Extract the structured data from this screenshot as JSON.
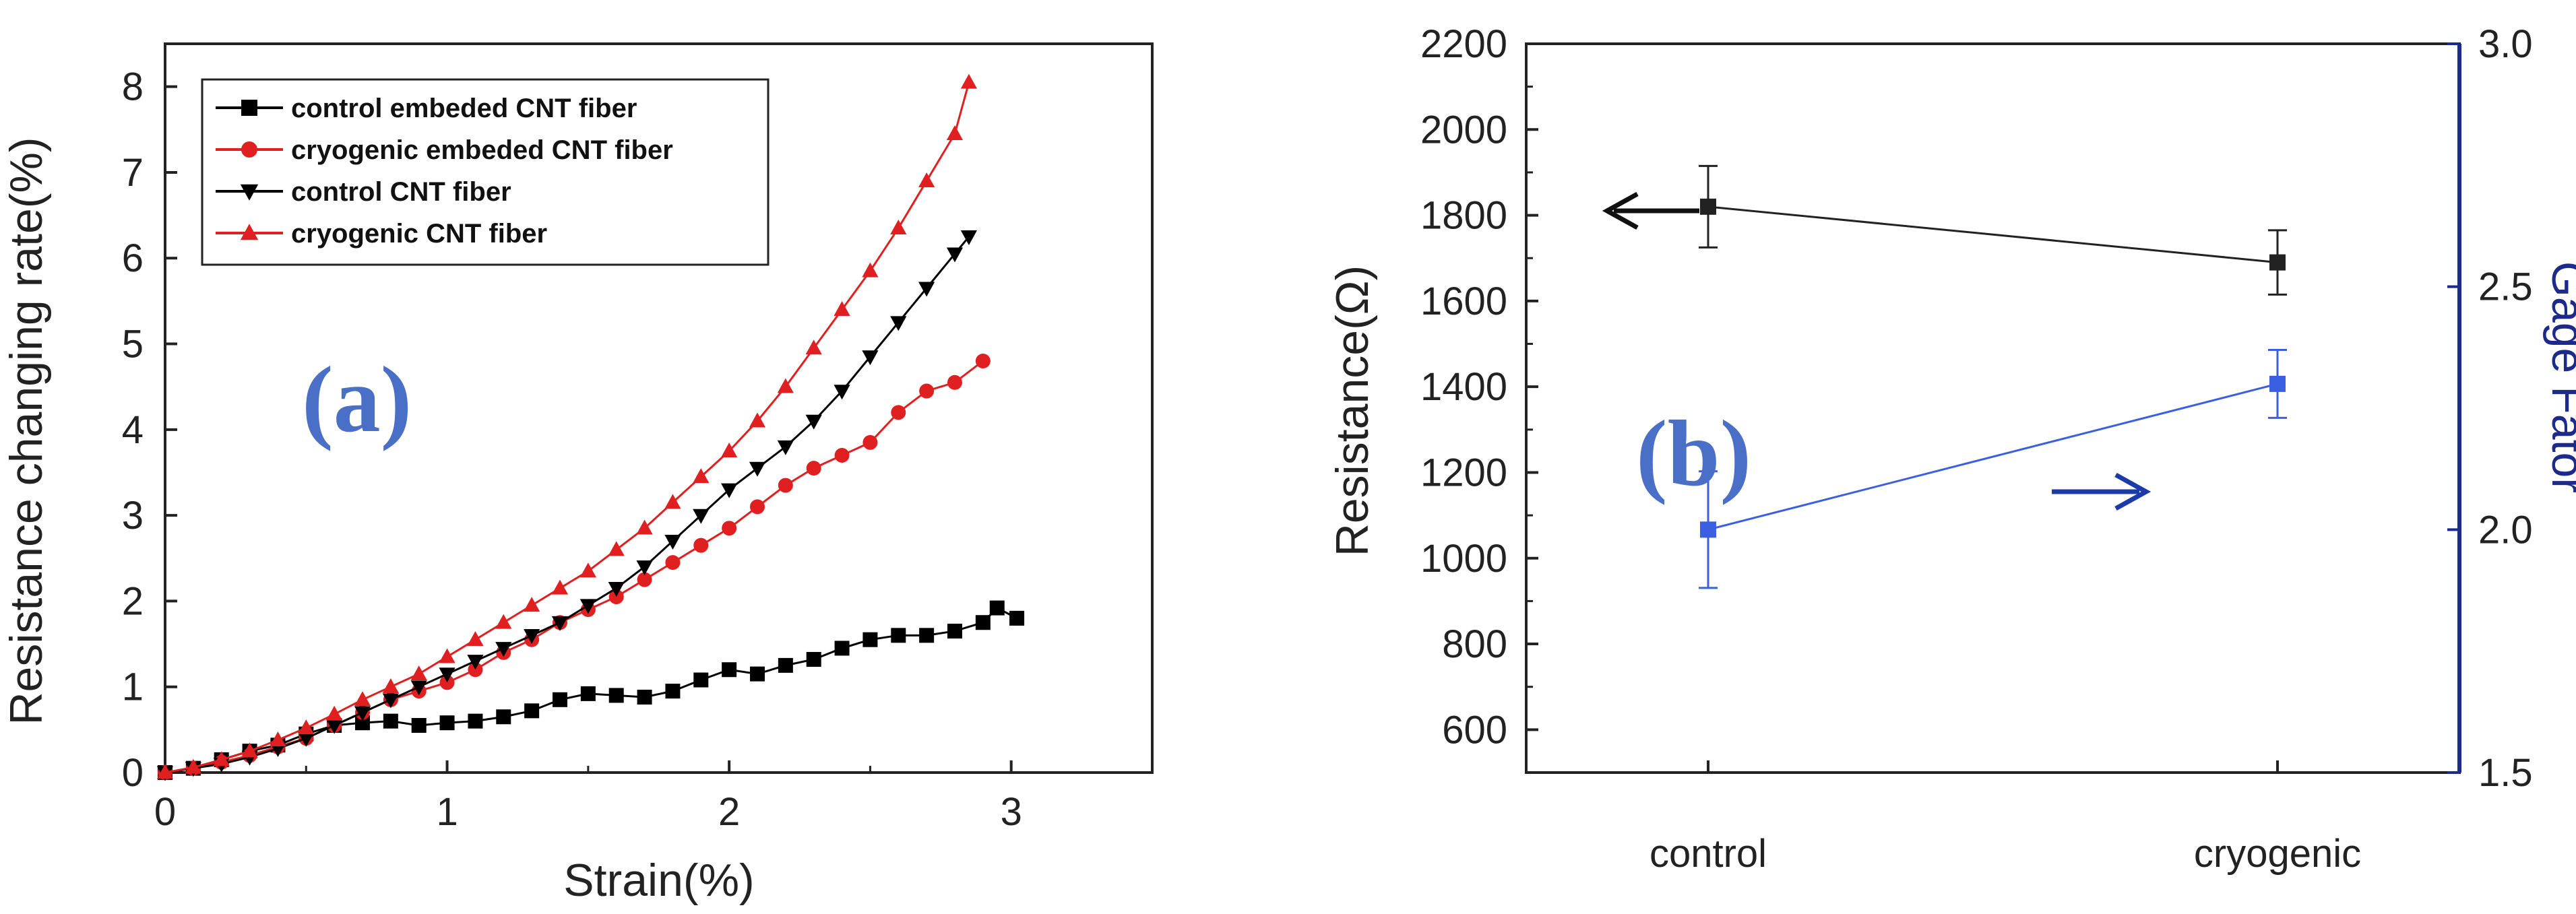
{
  "chart_data": [
    {
      "type": "line",
      "panel_label": "(a)",
      "title": "",
      "xlabel": "Strain(%)",
      "ylabel": "Resistance changing rate(%)",
      "xlim": [
        0,
        3.5
      ],
      "ylim": [
        0,
        8.5
      ],
      "xticks": [
        0,
        1,
        2,
        3
      ],
      "yticks": [
        0,
        1,
        2,
        3,
        4,
        5,
        6,
        7,
        8
      ],
      "legend_position": "top-left",
      "series": [
        {
          "name": "control embeded CNT fiber",
          "marker": "square",
          "color": "#000000",
          "x": [
            0.0,
            0.1,
            0.2,
            0.3,
            0.4,
            0.5,
            0.6,
            0.7,
            0.8,
            0.9,
            1.0,
            1.1,
            1.2,
            1.3,
            1.4,
            1.5,
            1.6,
            1.7,
            1.8,
            1.9,
            2.0,
            2.1,
            2.2,
            2.3,
            2.4,
            2.5,
            2.6,
            2.7,
            2.8,
            2.9,
            2.95,
            3.02
          ],
          "y": [
            0.0,
            0.05,
            0.15,
            0.25,
            0.32,
            0.45,
            0.55,
            0.58,
            0.6,
            0.55,
            0.58,
            0.6,
            0.65,
            0.72,
            0.85,
            0.92,
            0.9,
            0.88,
            0.95,
            1.08,
            1.2,
            1.15,
            1.25,
            1.32,
            1.45,
            1.55,
            1.6,
            1.6,
            1.65,
            1.75,
            1.92,
            1.8
          ]
        },
        {
          "name": "cryogenic embeded CNT fiber",
          "marker": "circle",
          "color": "#e02020",
          "x": [
            0.0,
            0.1,
            0.2,
            0.3,
            0.4,
            0.5,
            0.6,
            0.7,
            0.8,
            0.9,
            1.0,
            1.1,
            1.2,
            1.3,
            1.4,
            1.5,
            1.6,
            1.7,
            1.8,
            1.9,
            2.0,
            2.1,
            2.2,
            2.3,
            2.4,
            2.5,
            2.6,
            2.7,
            2.8,
            2.9
          ],
          "y": [
            0.0,
            0.05,
            0.12,
            0.2,
            0.3,
            0.4,
            0.55,
            0.7,
            0.85,
            0.95,
            1.05,
            1.2,
            1.4,
            1.55,
            1.75,
            1.9,
            2.05,
            2.25,
            2.45,
            2.65,
            2.85,
            3.1,
            3.35,
            3.55,
            3.7,
            3.85,
            4.2,
            4.45,
            4.55,
            4.8
          ]
        },
        {
          "name": "control CNT fiber",
          "marker": "triangle-down",
          "color": "#000000",
          "x": [
            0.0,
            0.1,
            0.2,
            0.3,
            0.4,
            0.5,
            0.6,
            0.7,
            0.8,
            0.9,
            1.0,
            1.1,
            1.2,
            1.3,
            1.4,
            1.5,
            1.6,
            1.7,
            1.8,
            1.9,
            2.0,
            2.1,
            2.2,
            2.3,
            2.4,
            2.5,
            2.6,
            2.7,
            2.8,
            2.85
          ],
          "y": [
            0.0,
            0.05,
            0.1,
            0.18,
            0.28,
            0.4,
            0.55,
            0.7,
            0.85,
            1.0,
            1.15,
            1.3,
            1.45,
            1.6,
            1.75,
            1.95,
            2.15,
            2.4,
            2.7,
            3.0,
            3.3,
            3.55,
            3.8,
            4.1,
            4.45,
            4.85,
            5.25,
            5.65,
            6.05,
            6.25
          ]
        },
        {
          "name": "cryogenic CNT fiber",
          "marker": "triangle-up",
          "color": "#e02020",
          "x": [
            0.0,
            0.1,
            0.2,
            0.3,
            0.4,
            0.5,
            0.6,
            0.7,
            0.8,
            0.9,
            1.0,
            1.1,
            1.2,
            1.3,
            1.4,
            1.5,
            1.6,
            1.7,
            1.8,
            1.9,
            2.0,
            2.1,
            2.2,
            2.3,
            2.4,
            2.5,
            2.6,
            2.7,
            2.8,
            2.85
          ],
          "y": [
            0.0,
            0.06,
            0.15,
            0.25,
            0.38,
            0.52,
            0.68,
            0.85,
            1.0,
            1.15,
            1.35,
            1.55,
            1.75,
            1.95,
            2.15,
            2.35,
            2.6,
            2.85,
            3.15,
            3.45,
            3.75,
            4.1,
            4.5,
            4.95,
            5.4,
            5.85,
            6.35,
            6.9,
            7.45,
            8.05
          ]
        }
      ]
    },
    {
      "type": "line",
      "panel_label": "(b)",
      "title": "",
      "xlabel": "",
      "categories": [
        "control",
        "cryogenic"
      ],
      "ylabel": "Resistance(Ω)",
      "ylabel_right": "Gage Fator",
      "ylim": [
        500,
        2200
      ],
      "yticks": [
        600,
        800,
        1000,
        1200,
        1400,
        1600,
        1800,
        2000,
        2200
      ],
      "ylim_right": [
        1.5,
        3.0
      ],
      "yticks_right": [
        "1.5",
        "2.0",
        "2.5",
        "3.0"
      ],
      "series": [
        {
          "name": "Resistance",
          "axis": "left",
          "color": "#222222",
          "values": [
            1820,
            1690
          ],
          "errors": [
            95,
            75
          ]
        },
        {
          "name": "Gage Factor",
          "axis": "right",
          "color": "#3a5fe0",
          "values": [
            2.0,
            2.3
          ],
          "errors": [
            0.12,
            0.07
          ]
        }
      ]
    }
  ]
}
